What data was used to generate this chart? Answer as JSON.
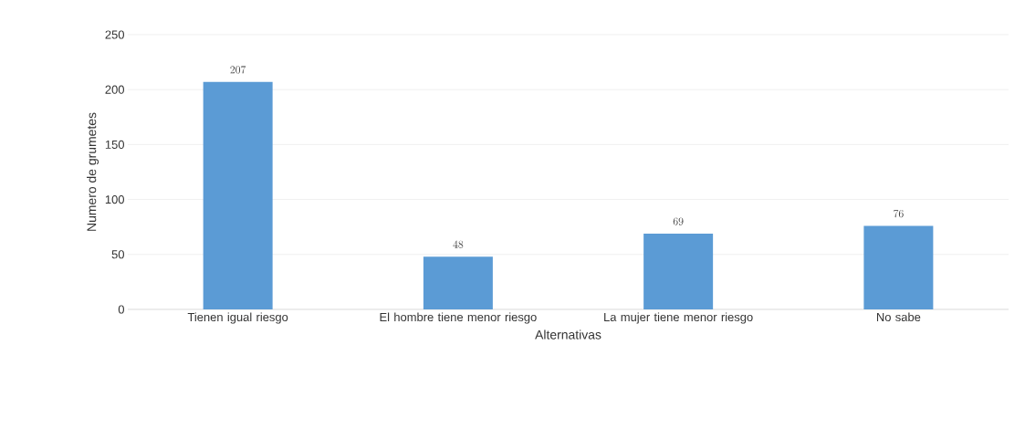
{
  "chart_data": {
    "type": "bar",
    "xlabel": "Alternativas",
    "ylabel": "Numero de grumetes",
    "categories": [
      "Tienen igual riesgo",
      "El hombre tiene menor riesgo",
      "La mujer tiene menor riesgo",
      "No sabe"
    ],
    "values": [
      207,
      48,
      69,
      76
    ],
    "color": "#5b9bd5",
    "ylim": [
      0,
      250
    ],
    "yticks": [
      0,
      50,
      100,
      150,
      200,
      250
    ],
    "grid": "y",
    "data_labels": true
  }
}
